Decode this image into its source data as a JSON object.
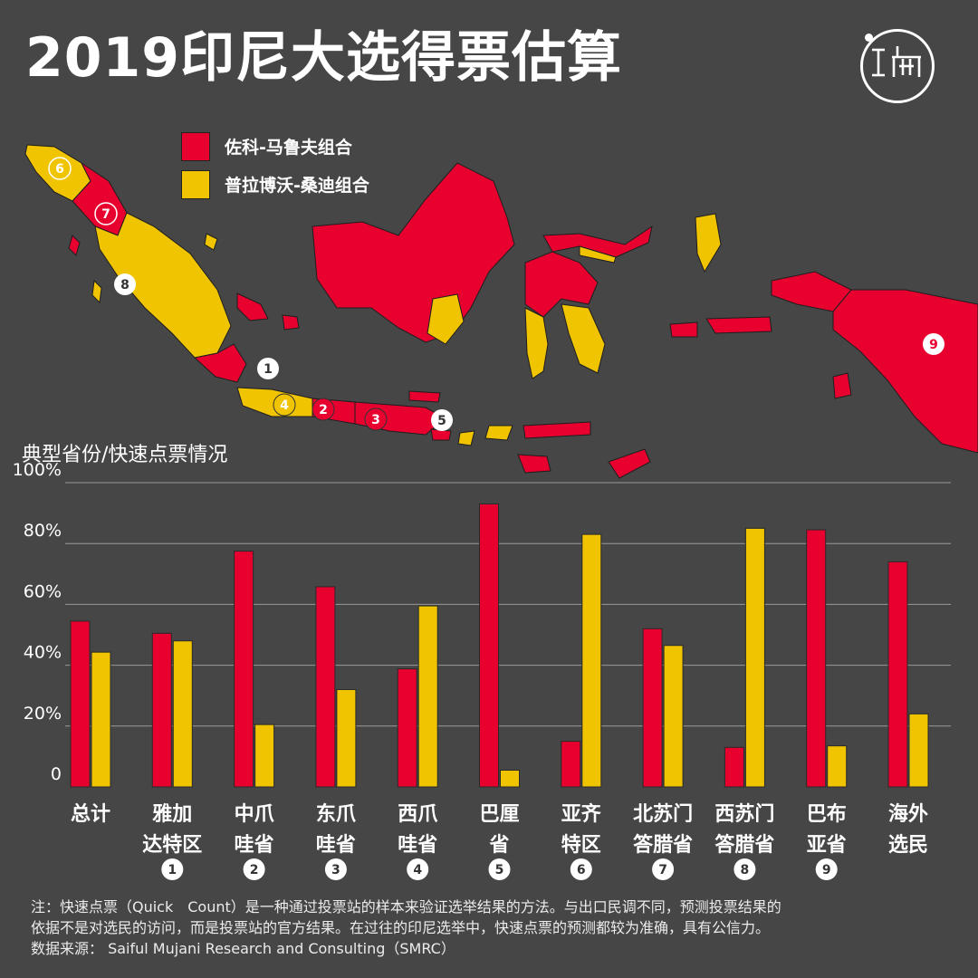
{
  "header": {
    "title": "2019印尼大选得票估算",
    "logo_icon": "initium-logo-icon"
  },
  "legend": [
    {
      "label": "佐科-马鲁夫组合",
      "color": "#e8002f"
    },
    {
      "label": "普拉博沃-桑迪组合",
      "color": "#f0c400"
    }
  ],
  "map": {
    "markers": [
      {
        "number": "1",
        "color": "#ffffff"
      },
      {
        "number": "4",
        "color": "#f0c400"
      },
      {
        "number": "2",
        "color": "#e8002f"
      },
      {
        "number": "3",
        "color": "#e8002f"
      },
      {
        "number": "5",
        "color": "#ffffff"
      },
      {
        "number": "6",
        "color": "#f0c400"
      },
      {
        "number": "7",
        "color": "#e8002f"
      },
      {
        "number": "8",
        "color": "#ffffff"
      },
      {
        "number": "9",
        "color": "#e8002f"
      }
    ]
  },
  "chart_data": {
    "type": "bar",
    "subtitle": "典型省份/快速点票情况",
    "ylim": [
      0,
      100
    ],
    "yticks": [
      "0",
      "20%",
      "40%",
      "60%",
      "80%",
      "100%"
    ],
    "categories": [
      {
        "lines": [
          "总计"
        ],
        "marker": ""
      },
      {
        "lines": [
          "雅加",
          "达特区"
        ],
        "marker": "1"
      },
      {
        "lines": [
          "中爪",
          "哇省"
        ],
        "marker": "2"
      },
      {
        "lines": [
          "东爪",
          "哇省"
        ],
        "marker": "3"
      },
      {
        "lines": [
          "西爪",
          "哇省"
        ],
        "marker": "4"
      },
      {
        "lines": [
          "巴厘",
          "省"
        ],
        "marker": "5"
      },
      {
        "lines": [
          "亚齐",
          "特区"
        ],
        "marker": "6"
      },
      {
        "lines": [
          "北苏门",
          "答腊省"
        ],
        "marker": "7"
      },
      {
        "lines": [
          "西苏门",
          "答腊省"
        ],
        "marker": "8"
      },
      {
        "lines": [
          "巴布",
          "亚省"
        ],
        "marker": "9"
      },
      {
        "lines": [
          "海外",
          "选民"
        ],
        "marker": ""
      }
    ],
    "series": [
      {
        "name": "佐科-马鲁夫组合",
        "color": "#e8002f",
        "values": [
          54.5,
          50.5,
          77.5,
          65.8,
          38.8,
          93.0,
          15.0,
          52.0,
          13.0,
          84.5,
          74.0
        ]
      },
      {
        "name": "普拉博沃-桑迪组合",
        "color": "#f0c400",
        "values": [
          44.3,
          48.0,
          20.5,
          32.0,
          59.5,
          5.5,
          83.0,
          46.5,
          85.0,
          13.5,
          24.0
        ]
      }
    ]
  },
  "footnote": {
    "lines": [
      "注：快速点票（Quick　Count）是一种通过投票站的样本来验证选举结果的方法。与出口民调不同，预测投票结果的",
      "依据不是对选民的访问，而是投票站的官方结果。在过往的印尼选举中，快速点票的预测都较为准确，具有公信力。",
      "数据来源： Saiful Mujani Research and Consulting（SMRC）"
    ]
  }
}
